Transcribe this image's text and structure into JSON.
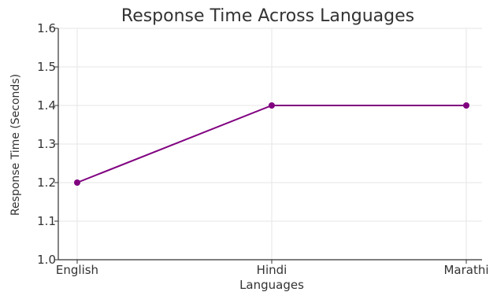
{
  "chart_data": {
    "type": "line",
    "title": "Response Time Across Languages",
    "xlabel": "Languages",
    "ylabel": "Response Time (Seconds)",
    "categories": [
      "English",
      "Hindi",
      "Marathi"
    ],
    "series": [
      {
        "values": [
          1.2,
          1.4,
          1.4
        ],
        "color": "#800080"
      }
    ],
    "ylim": [
      1.0,
      1.6
    ],
    "yticks": [
      "1.0",
      "1.1",
      "1.2",
      "1.3",
      "1.4",
      "1.5",
      "1.6"
    ],
    "grid": true
  }
}
